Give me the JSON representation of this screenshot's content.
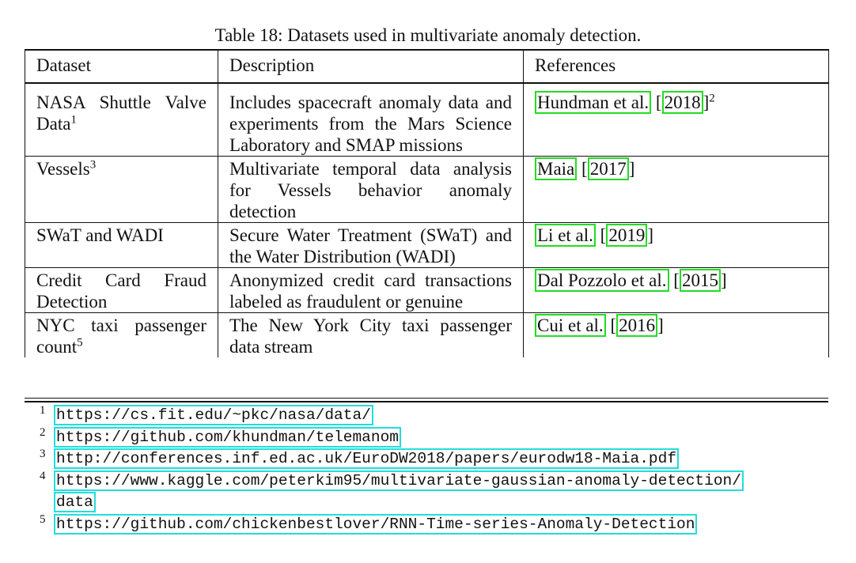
{
  "caption": "Table 18: Datasets used in multivariate anomaly detection.",
  "headers": [
    "Dataset",
    "Description",
    "References"
  ],
  "rows": [
    {
      "dataset": "NASA Shuttle Valve Data",
      "dataset_sup": "1",
      "description": "Includes spacecraft anomaly data and experiments from the Mars Science Laboratory and SMAP missions",
      "ref_author": "Hundman et al.",
      "ref_year": "2018",
      "ref_sup": "2"
    },
    {
      "dataset": "Vessels",
      "dataset_sup": "3",
      "description": "Multivariate temporal data analysis for Vessels behavior anomaly detection",
      "ref_author": "Maia",
      "ref_year": "2017",
      "ref_sup": ""
    },
    {
      "dataset": "SWaT and WADI",
      "dataset_sup": "",
      "description": "Secure Water Treatment (SWaT) and the Water Distribution (WADI)",
      "ref_author": "Li et al.",
      "ref_year": "2019",
      "ref_sup": ""
    },
    {
      "dataset": "Credit Card Fraud Detection",
      "dataset_sup": "",
      "description": "Anonymized credit card transactions labeled as fraudulent or genuine",
      "ref_author": "Dal Pozzolo et al.",
      "ref_year": "2015",
      "ref_sup": ""
    },
    {
      "dataset": "NYC taxi passenger count",
      "dataset_sup": "5",
      "description": "The New York City taxi passenger data stream",
      "ref_author": "Cui et al.",
      "ref_year": "2016",
      "ref_sup": ""
    }
  ],
  "footnotes": [
    {
      "num": "1",
      "url": "https://cs.fit.edu/~pkc/nasa/data/"
    },
    {
      "num": "2",
      "url": "https://github.com/khundman/telemanom"
    },
    {
      "num": "3",
      "url": "http://conferences.inf.ed.ac.uk/EuroDW2018/papers/eurodw18-Maia.pdf"
    },
    {
      "num": "4",
      "url": "https://www.kaggle.com/peterkim95/multivariate-gaussian-anomaly-detection/",
      "url_cont": "data"
    },
    {
      "num": "5",
      "url": "https://github.com/chickenbestlover/RNN-Time-series-Anomaly-Detection"
    }
  ],
  "colors": {
    "citation_box": "#22dd22",
    "url_box": "#22dddd"
  }
}
